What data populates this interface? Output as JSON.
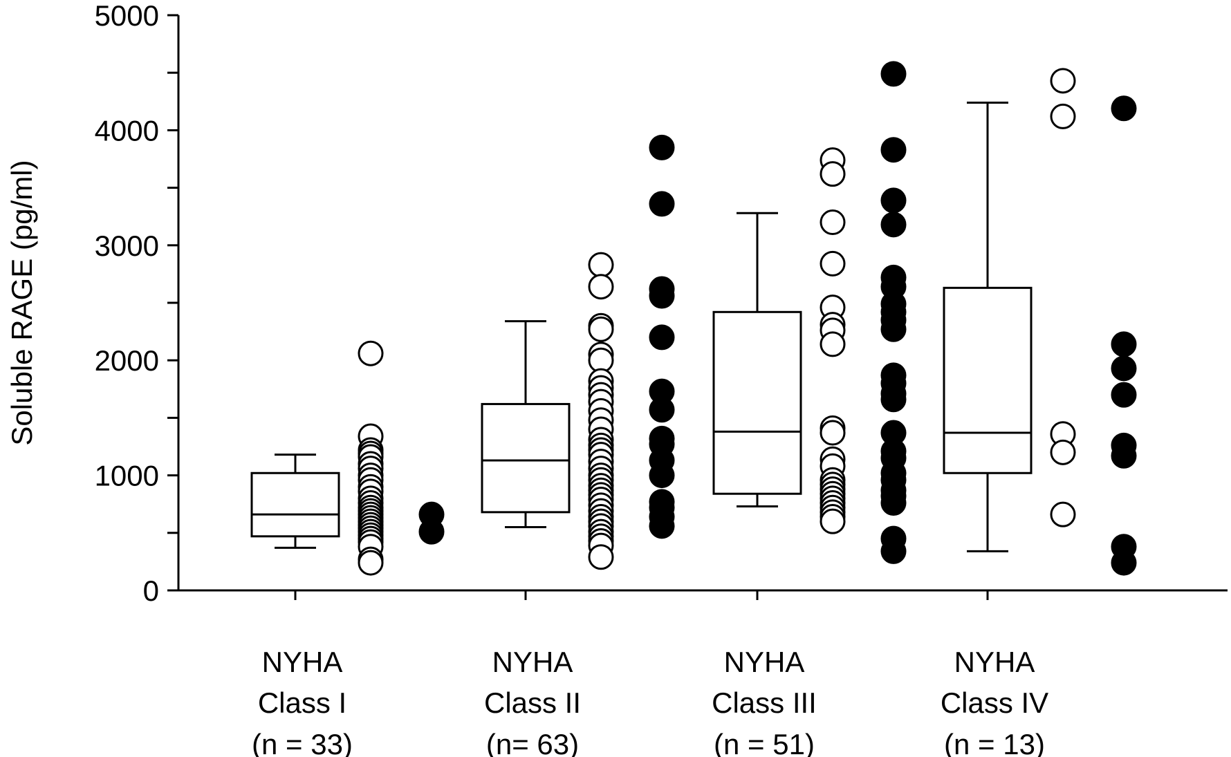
{
  "chart_data": {
    "type": "box+scatter",
    "title": "",
    "ylabel": "Soluble RAGE (pg/ml)",
    "xlabel": "",
    "ylim": [
      0,
      5000
    ],
    "yticks": [
      0,
      1000,
      2000,
      3000,
      4000,
      5000
    ],
    "grid": false,
    "categories": [
      {
        "lines": [
          "NYHA",
          "Class I",
          "(n = 33)"
        ],
        "box": {
          "lower_whisker": 370,
          "q1": 470,
          "median": 660,
          "q3": 1020,
          "upper_whisker": 1180
        },
        "open_points": [
          2060,
          1340,
          1220,
          1190,
          1160,
          1100,
          1060,
          1000,
          960,
          900,
          860,
          800,
          760,
          720,
          690,
          660,
          630,
          600,
          570,
          540,
          510,
          480,
          450,
          420,
          380,
          270,
          240
        ],
        "filled_points": [
          660,
          510
        ]
      },
      {
        "lines": [
          "NYHA",
          "Class II",
          "(n= 63)"
        ],
        "box": {
          "lower_whisker": 550,
          "q1": 680,
          "median": 1130,
          "q3": 1620,
          "upper_whisker": 2340
        },
        "open_points": [
          2830,
          2640,
          2300,
          2270,
          2050,
          2000,
          1820,
          1760,
          1700,
          1640,
          1560,
          1480,
          1400,
          1310,
          1260,
          1220,
          1180,
          1120,
          1060,
          1000,
          960,
          910,
          870,
          830,
          790,
          740,
          690,
          640,
          600,
          560,
          510,
          470,
          430,
          390,
          290
        ],
        "filled_points": [
          3850,
          3360,
          2620,
          2560,
          2200,
          1730,
          1570,
          1320,
          1270,
          1130,
          1000,
          770,
          720,
          640,
          560
        ]
      },
      {
        "lines": [
          "NYHA",
          "Class III",
          "(n = 51)"
        ],
        "box": {
          "lower_whisker": 730,
          "q1": 840,
          "median": 1380,
          "q3": 2420,
          "upper_whisker": 3280
        },
        "open_points": [
          3740,
          3620,
          3200,
          2840,
          2460,
          2310,
          2260,
          2140,
          1410,
          1370,
          1140,
          1080,
          960,
          920,
          880,
          840,
          800,
          760,
          720,
          680,
          640,
          600
        ],
        "filled_points": [
          4490,
          3830,
          3390,
          3180,
          2720,
          2640,
          2490,
          2420,
          2350,
          2270,
          1870,
          1800,
          1710,
          1660,
          1370,
          1210,
          1150,
          1020,
          960,
          870,
          820,
          760,
          450,
          340
        ]
      },
      {
        "lines": [
          "NYHA",
          "Class IV",
          "(n = 13)"
        ],
        "box": {
          "lower_whisker": 340,
          "q1": 1020,
          "median": 1370,
          "q3": 2630,
          "upper_whisker": 4240
        },
        "open_points": [
          4430,
          4120,
          1360,
          1200,
          660
        ],
        "filled_points": [
          4190,
          2140,
          1930,
          1700,
          1260,
          1170,
          380,
          240
        ]
      }
    ]
  }
}
